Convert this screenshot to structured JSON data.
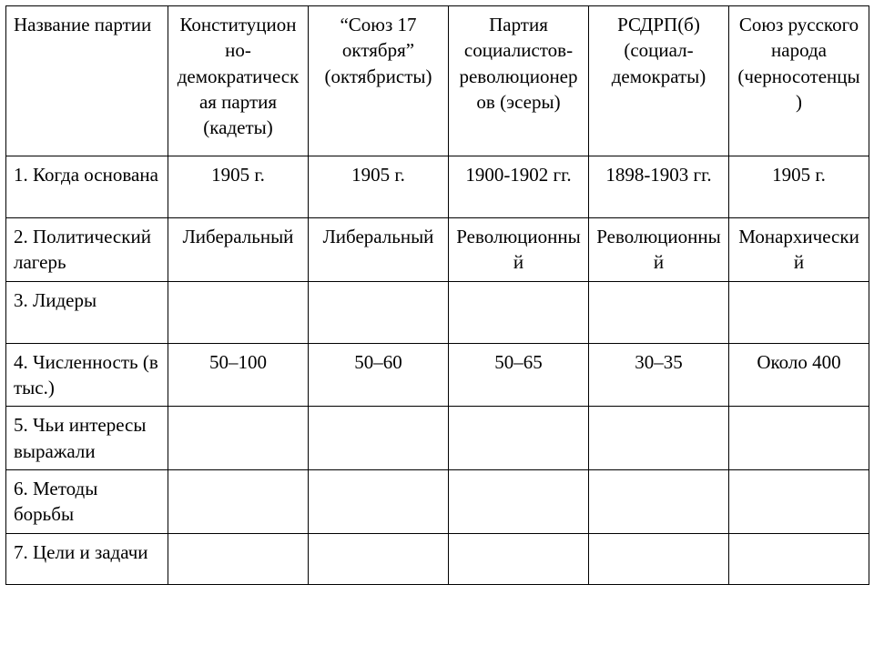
{
  "table": {
    "type": "table",
    "columns": 6,
    "border_color": "#000000",
    "background_color": "#ffffff",
    "font_family": "Times New Roman",
    "font_size_pt": 16,
    "header": {
      "label": "Название партии",
      "parties": [
        "Конституционно-демократическая партия (кадеты)",
        "“Союз 17 октября” (октябристы)",
        "Партия социалистов-революционеров (эсеры)",
        "РСДРП(б) (социал-демократы)",
        "Союз русского народа (черносотенцы)"
      ]
    },
    "rows": [
      {
        "label": "1. Когда основана",
        "cells": [
          "1905 г.",
          "1905 г.",
          "1900-1902 гг.",
          "1898-1903 гг.",
          "1905 г."
        ]
      },
      {
        "label": "2. Политический лагерь",
        "cells": [
          "Либеральный",
          "Либеральный",
          "Революционный",
          "Революционный",
          "Монархический"
        ]
      },
      {
        "label": "3. Лидеры",
        "cells": [
          "",
          "",
          "",
          "",
          ""
        ]
      },
      {
        "label": "4. Численность (в тыс.)",
        "cells": [
          "50–100",
          "50–60",
          "50–65",
          "30–35",
          "Около 400"
        ]
      },
      {
        "label": "5. Чьи интересы выражали",
        "cells": [
          "",
          "",
          "",
          "",
          ""
        ]
      },
      {
        "label": "6. Методы борьбы",
        "cells": [
          "",
          "",
          "",
          "",
          ""
        ]
      },
      {
        "label": "7. Цели и задачи",
        "cells": [
          "",
          "",
          "",
          "",
          ""
        ]
      }
    ]
  }
}
